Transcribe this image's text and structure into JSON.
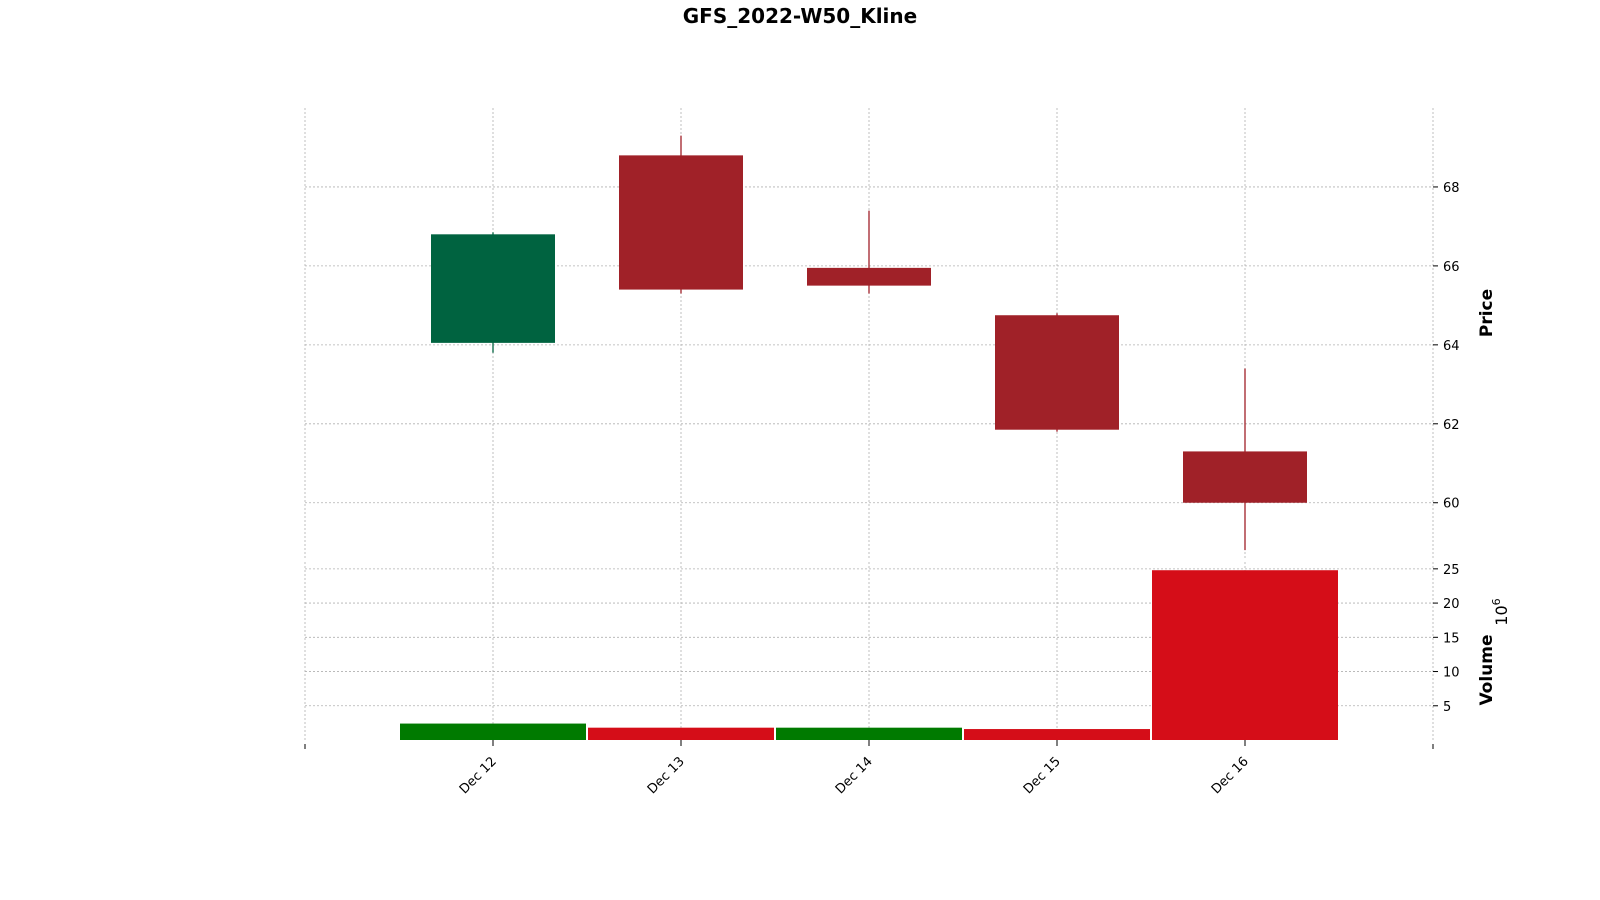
{
  "chart_data": {
    "type": "candlestick",
    "title": "GFS_2022-W50_Kline",
    "categories": [
      "Dec 12",
      "Dec 13",
      "Dec 14",
      "Dec 15",
      "Dec 16"
    ],
    "ohlc": [
      {
        "date": "Dec 12",
        "open": 64.05,
        "high": 66.85,
        "low": 63.8,
        "close": 66.8
      },
      {
        "date": "Dec 13",
        "open": 68.8,
        "high": 69.3,
        "low": 65.3,
        "close": 65.4
      },
      {
        "date": "Dec 14",
        "open": 65.95,
        "high": 67.4,
        "low": 65.3,
        "close": 65.5
      },
      {
        "date": "Dec 15",
        "open": 64.75,
        "high": 64.8,
        "low": 61.8,
        "close": 61.85
      },
      {
        "date": "Dec 16",
        "open": 61.3,
        "high": 63.4,
        "low": 58.8,
        "close": 60.0
      }
    ],
    "volume": [
      {
        "date": "Dec 12",
        "value": 2.4,
        "direction": "up"
      },
      {
        "date": "Dec 13",
        "value": 1.8,
        "direction": "down"
      },
      {
        "date": "Dec 14",
        "value": 1.8,
        "direction": "up"
      },
      {
        "date": "Dec 15",
        "value": 1.6,
        "direction": "down"
      },
      {
        "date": "Dec 16",
        "value": 24.8,
        "direction": "down"
      }
    ],
    "price_axis": {
      "label": "Price",
      "ticks": [
        60,
        62,
        64,
        66,
        68
      ],
      "ylim": [
        58.6,
        70.0
      ],
      "position": "right"
    },
    "volume_axis": {
      "label": "Volume",
      "ticks": [
        5,
        10,
        15,
        20,
        25
      ],
      "ylim": [
        0,
        26
      ],
      "position": "right",
      "multiplier": "10",
      "multiplier_exp": "6"
    },
    "grid": true,
    "colors": {
      "candle_up": "#006340",
      "candle_down": "#A02128",
      "volume_up": "#007A00",
      "volume_down": "#D50D18"
    }
  }
}
